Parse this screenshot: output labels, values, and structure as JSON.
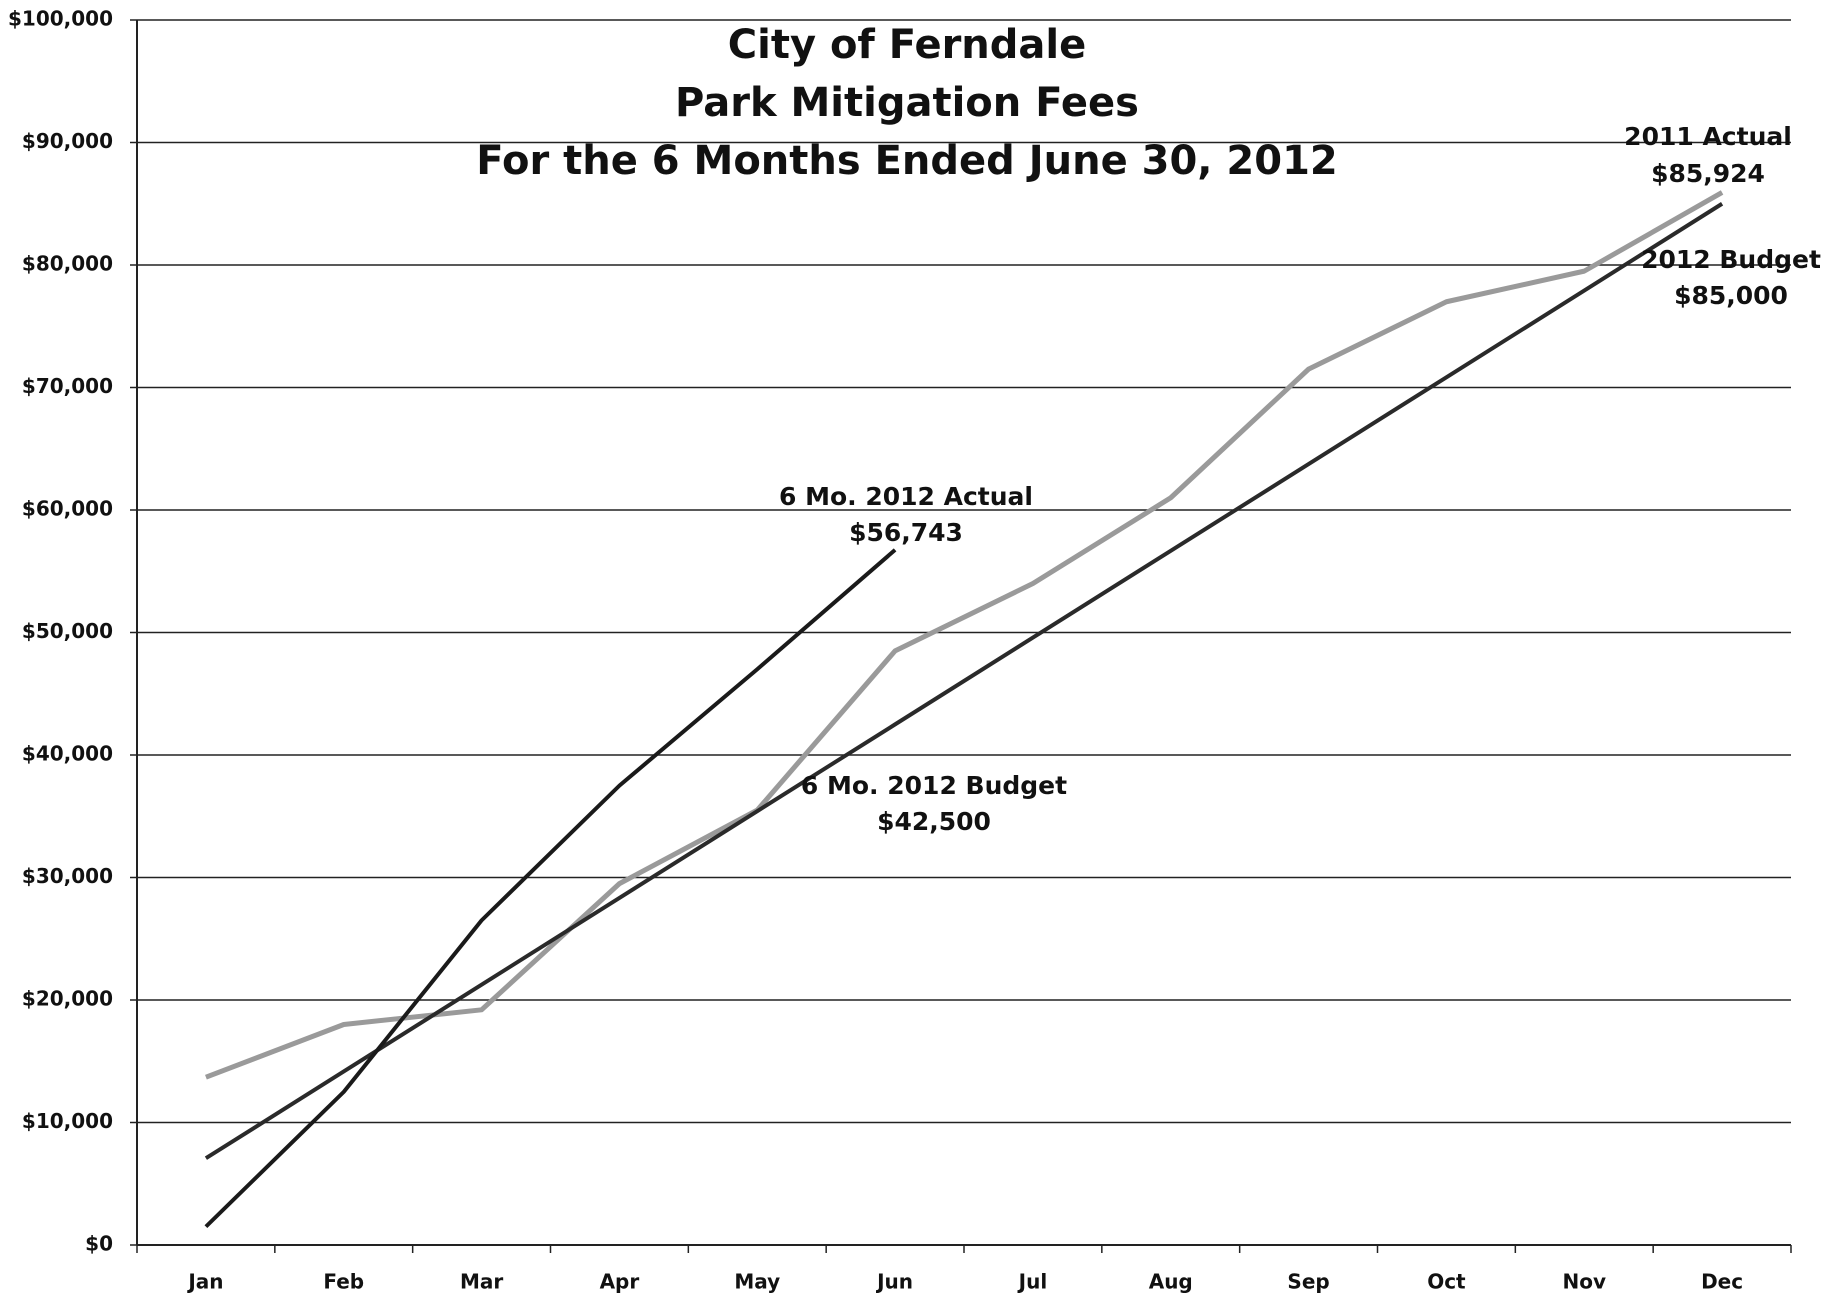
{
  "chart_data": {
    "type": "line",
    "title": [
      "City of Ferndale",
      "Park Mitigation Fees",
      "For the 6 Months Ended June 30, 2012"
    ],
    "categories": [
      "Jan",
      "Feb",
      "Mar",
      "Apr",
      "May",
      "Jun",
      "Jul",
      "Aug",
      "Sep",
      "Oct",
      "Nov",
      "Dec"
    ],
    "series": [
      {
        "color": "#9a9a9a",
        "values": [
          13700,
          18000,
          19200,
          29500,
          35500,
          48500,
          54000,
          61000,
          71500,
          77000,
          79500,
          85924
        ]
      },
      {
        "color": "#2a2a2a",
        "values": [
          7083,
          14167,
          21250,
          28333,
          35417,
          42500,
          49583,
          56667,
          63750,
          70833,
          77917,
          85000
        ]
      },
      {
        "color": "#1a1a1a",
        "values": [
          1500,
          12500,
          26500,
          37500,
          47000,
          56743,
          null,
          null,
          null,
          null,
          null,
          null
        ]
      }
    ],
    "annotations": [
      {
        "text": "6 Mo. 2012 Actual"
      },
      {
        "text": "$56,743"
      },
      {
        "text": "6 Mo. 2012 Budget"
      },
      {
        "text": "$42,500"
      },
      {
        "text": "2011 Actual"
      },
      {
        "text": "$85,924"
      },
      {
        "text": "2012 Budget"
      },
      {
        "text": "$85,000"
      }
    ],
    "ylim": [
      0,
      100000
    ],
    "yticks": [
      {
        "value": 0,
        "label": "$0"
      },
      {
        "value": 10000,
        "label": "$10,000"
      },
      {
        "value": 20000,
        "label": "$20,000"
      },
      {
        "value": 30000,
        "label": "$30,000"
      },
      {
        "value": 40000,
        "label": "$40,000"
      },
      {
        "value": 50000,
        "label": "$50,000"
      },
      {
        "value": 60000,
        "label": "$60,000"
      },
      {
        "value": 70000,
        "label": "$70,000"
      },
      {
        "value": 80000,
        "label": "$80,000"
      },
      {
        "value": 90000,
        "label": "$90,000"
      },
      {
        "value": 100000,
        "label": "$100,000"
      }
    ],
    "grid": true
  }
}
